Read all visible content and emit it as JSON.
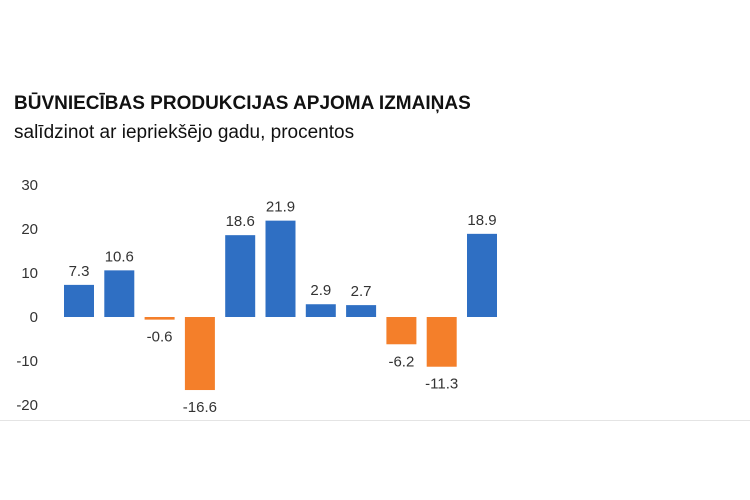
{
  "chart_data": {
    "type": "bar",
    "title": "BŪVNIECĪBAS PRODUKCIJAS APJOMA IZMAIŅAS",
    "subtitle": "salīdzinot ar iepriekšējo gadu, procentos",
    "categories": [
      "",
      "",
      "",
      "",
      "",
      "",
      "",
      "",
      "",
      "",
      ""
    ],
    "values": [
      7.3,
      10.6,
      -0.6,
      -16.6,
      18.6,
      21.9,
      2.9,
      2.7,
      -6.2,
      -11.3,
      18.9
    ],
    "data_labels": [
      "7.3",
      "10.6",
      "-0.6",
      "-16.6",
      "18.6",
      "21.9",
      "2.9",
      "2.7",
      "-6.2",
      "-11.3",
      "18.9"
    ],
    "yticks": [
      30,
      20,
      10,
      0,
      -10,
      -20
    ],
    "ytick_labels": [
      "30",
      "20",
      "10",
      "0",
      "-10",
      "-20"
    ],
    "ylim": [
      -20,
      30
    ],
    "grid": false,
    "legend": "none",
    "colors": {
      "positive": "#2f6fc3",
      "negative": "#f47f2a"
    }
  }
}
